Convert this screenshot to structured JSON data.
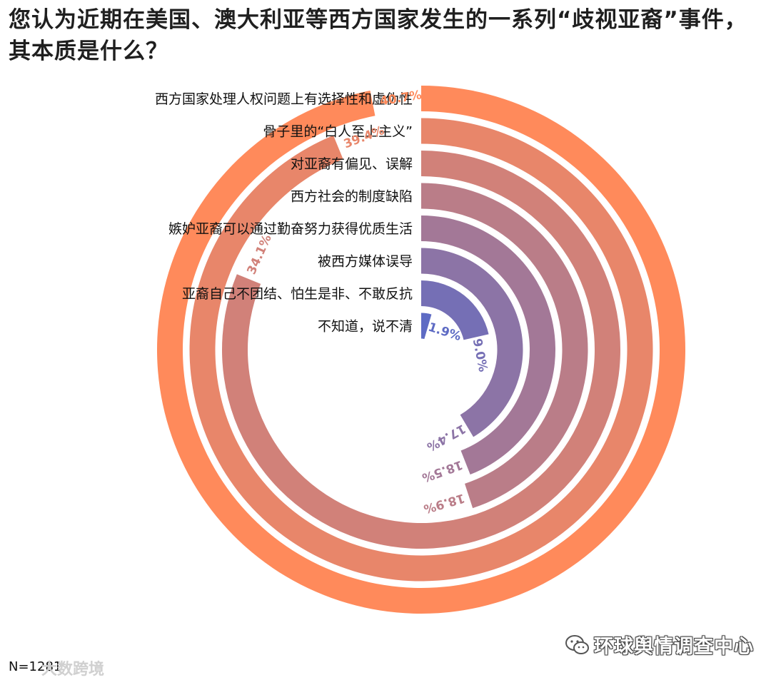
{
  "title": "您认为近期在美国、澳大利亚等西方国家发生的一系列“歧视亚裔”事件，其本质是什么？",
  "footer": {
    "sample_size": "N=1281",
    "watermark": "大数跨境"
  },
  "brand": {
    "name": "环球舆情调查中心",
    "icon": "wechat-icon"
  },
  "colors": {
    "outer": "#FF8A5B",
    "inner": "#5E6BC4"
  },
  "chart_data": {
    "type": "radial-bar",
    "title": "您认为近期在美国、澳大利亚等西方国家发生的一系列“歧视亚裔”事件，其本质是什么？",
    "max": 42,
    "categories": [
      "西方国家处理人权问题上有选择性和虚伪性",
      "骨子里的“白人至上主义”",
      "对亚裔有偏见、误解",
      "西方社会的制度缺陷",
      "嫉妒亚裔可以通过勤奋努力获得优质生活",
      "被西方媒体误导",
      "亚裔自己不团结、怕生是非、不敢反抗",
      "不知道，说不清"
    ],
    "values": [
      40.7,
      39.4,
      34.1,
      18.9,
      18.5,
      17.4,
      9.0,
      1.9
    ],
    "value_labels": [
      "40.7%",
      "39.4%",
      "34.1%",
      "18.9%",
      "18.5%",
      "17.4%",
      "9.0%",
      "1.9%"
    ]
  }
}
